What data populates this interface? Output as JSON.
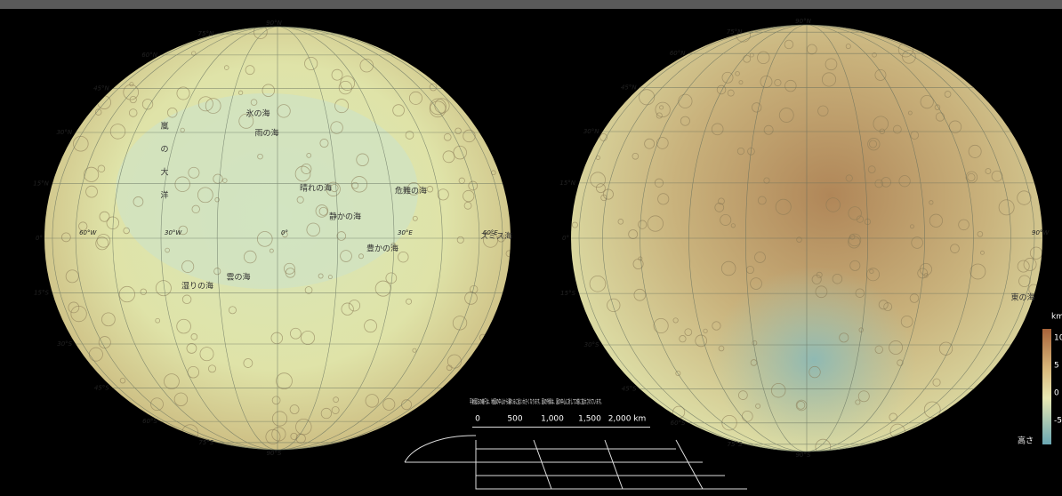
{
  "nearside": {
    "latitude_labels": [
      "90°N",
      "75°N",
      "60°N",
      "45°N",
      "30°N",
      "15°N",
      "0°",
      "15°S",
      "30°S",
      "45°S",
      "60°S",
      "75°S",
      "90°S"
    ],
    "longitude_labels": [
      "60°W",
      "30°W",
      "0°",
      "30°E",
      "60°E"
    ],
    "feature_labels": [
      "嵐",
      "の",
      "大",
      "洋",
      "雨の海",
      "晴れの海",
      "危難の海",
      "静かの海",
      "豊かの海",
      "雲の海",
      "湿りの海",
      "氷の海",
      "スミス海"
    ]
  },
  "farside": {
    "latitude_labels": [
      "90°N",
      "75°N",
      "60°N",
      "45°N",
      "30°N",
      "15°N",
      "0°",
      "15°S",
      "30°S",
      "45°S",
      "60°S",
      "75°S",
      "90°S"
    ],
    "longitude_labels": [
      "90°W"
    ],
    "feature_labels": [
      "東の海"
    ]
  },
  "note": "平射図法の縮尺は、地図の中心から離れるに従い大きくなります。図の外縁は、図の中心に対して2倍に拡大されています。",
  "scale": {
    "ticks": [
      "0",
      "500",
      "1,000",
      "1,500",
      "2,000 km"
    ]
  },
  "legend": {
    "unit": "km",
    "ticks": [
      "10",
      "5",
      "0",
      "-5"
    ],
    "label": "高さ"
  }
}
